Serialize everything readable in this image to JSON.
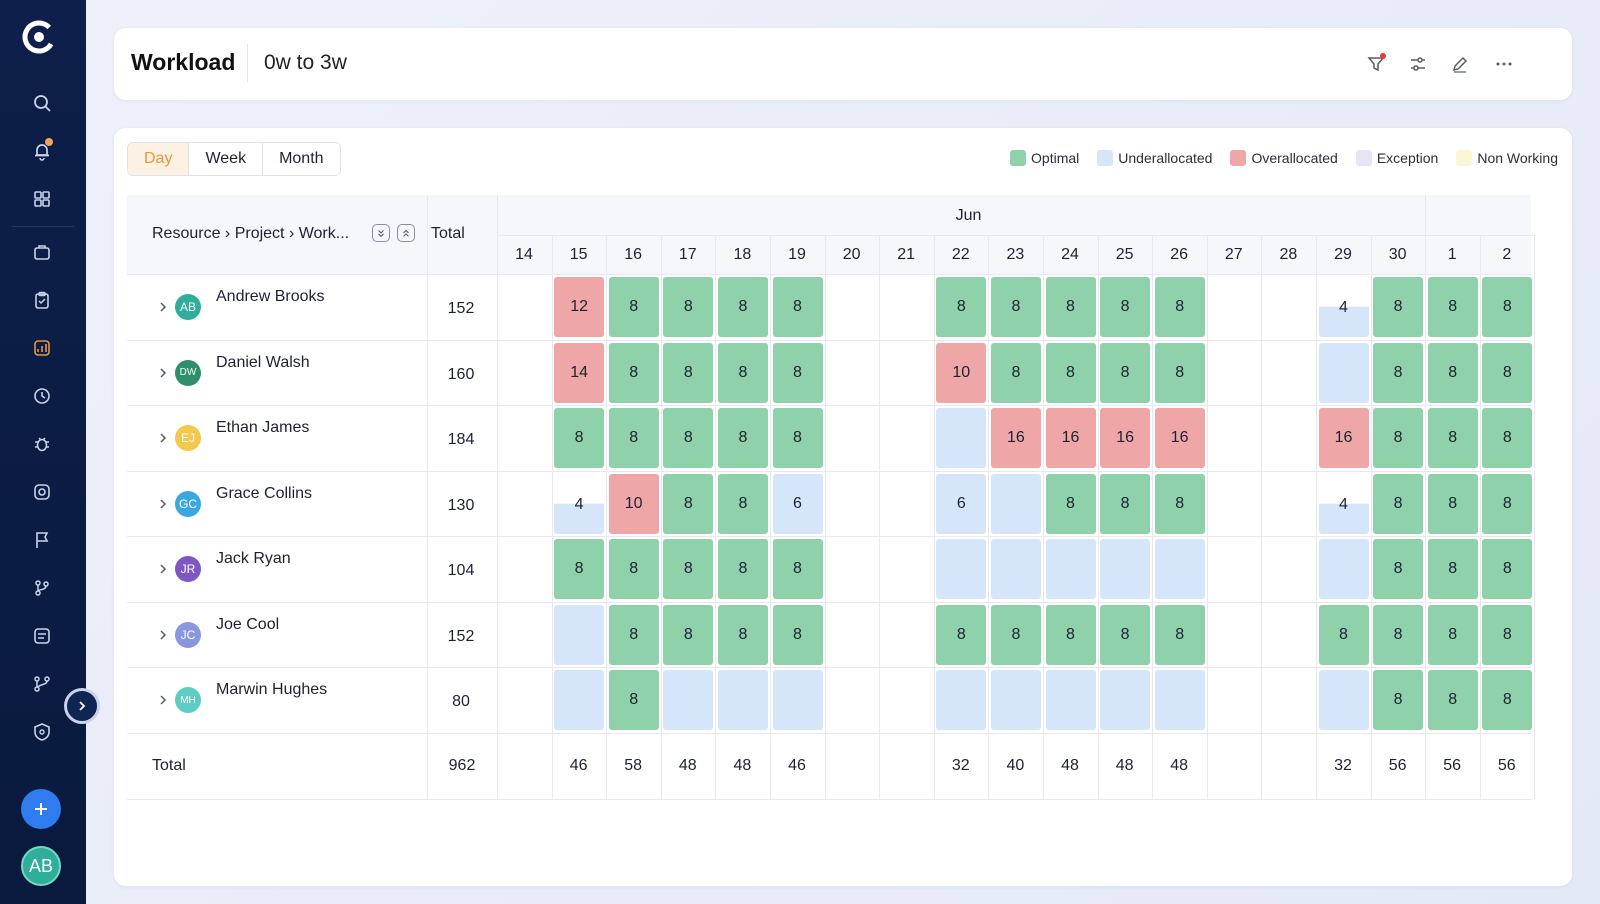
{
  "header": {
    "title": "Workload",
    "subtitle": "0w to 3w"
  },
  "view_toggle": {
    "options": [
      "Day",
      "Week",
      "Month"
    ],
    "active": "Day"
  },
  "legend": [
    {
      "label": "Optimal",
      "color": "#8fd1aa"
    },
    {
      "label": "Underallocated",
      "color": "#d5e6fa"
    },
    {
      "label": "Overallocated",
      "color": "#eea6a6"
    },
    {
      "label": "Exception",
      "color": "#e4e6f6"
    },
    {
      "label": "Non Working",
      "color": "#fdf6d6"
    }
  ],
  "table": {
    "resource_header": "Resource › Project › Work...",
    "total_header": "Total",
    "month": "Jun",
    "days": [
      "14",
      "15",
      "16",
      "17",
      "18",
      "19",
      "20",
      "21",
      "22",
      "23",
      "24",
      "25",
      "26",
      "27",
      "28",
      "29",
      "30",
      "1",
      "2"
    ],
    "rows": [
      {
        "name": "Andrew Brooks",
        "initials": "AB",
        "color": "#2fae9b",
        "total": "152",
        "cells": [
          null,
          [
            "over",
            "12"
          ],
          [
            "opt",
            "8"
          ],
          [
            "opt",
            "8"
          ],
          [
            "opt",
            "8"
          ],
          [
            "opt",
            "8"
          ],
          null,
          null,
          [
            "opt",
            "8"
          ],
          [
            "opt",
            "8"
          ],
          [
            "opt",
            "8"
          ],
          [
            "opt",
            "8"
          ],
          [
            "opt",
            "8"
          ],
          null,
          null,
          [
            "partial",
            "4"
          ],
          [
            "opt",
            "8"
          ],
          [
            "opt",
            "8"
          ],
          [
            "opt",
            "8"
          ]
        ]
      },
      {
        "name": "Daniel Walsh",
        "initials": "DW",
        "color": "#2e8f6a",
        "total": "160",
        "cells": [
          null,
          [
            "over",
            "14"
          ],
          [
            "opt",
            "8"
          ],
          [
            "opt",
            "8"
          ],
          [
            "opt",
            "8"
          ],
          [
            "opt",
            "8"
          ],
          null,
          null,
          [
            "over",
            "10"
          ],
          [
            "opt",
            "8"
          ],
          [
            "opt",
            "8"
          ],
          [
            "opt",
            "8"
          ],
          [
            "opt",
            "8"
          ],
          null,
          null,
          [
            "under",
            ""
          ],
          [
            "opt",
            "8"
          ],
          [
            "opt",
            "8"
          ],
          [
            "opt",
            "8"
          ]
        ]
      },
      {
        "name": "Ethan James",
        "initials": "EJ",
        "color": "#f2c94c",
        "total": "184",
        "cells": [
          null,
          [
            "opt",
            "8"
          ],
          [
            "opt",
            "8"
          ],
          [
            "opt",
            "8"
          ],
          [
            "opt",
            "8"
          ],
          [
            "opt",
            "8"
          ],
          null,
          null,
          [
            "under",
            ""
          ],
          [
            "over",
            "16"
          ],
          [
            "over",
            "16"
          ],
          [
            "over",
            "16"
          ],
          [
            "over",
            "16"
          ],
          null,
          null,
          [
            "over",
            "16"
          ],
          [
            "opt",
            "8"
          ],
          [
            "opt",
            "8"
          ],
          [
            "opt",
            "8"
          ]
        ]
      },
      {
        "name": "Grace Collins",
        "initials": "GC",
        "color": "#3aa7df",
        "total": "130",
        "cells": [
          null,
          [
            "partial",
            "4"
          ],
          [
            "over",
            "10"
          ],
          [
            "opt",
            "8"
          ],
          [
            "opt",
            "8"
          ],
          [
            "under",
            "6"
          ],
          null,
          null,
          [
            "under",
            "6"
          ],
          [
            "under",
            ""
          ],
          [
            "opt",
            "8"
          ],
          [
            "opt",
            "8"
          ],
          [
            "opt",
            "8"
          ],
          null,
          null,
          [
            "partial",
            "4"
          ],
          [
            "opt",
            "8"
          ],
          [
            "opt",
            "8"
          ],
          [
            "opt",
            "8"
          ]
        ]
      },
      {
        "name": "Jack Ryan",
        "initials": "JR",
        "color": "#7e57c2",
        "total": "104",
        "cells": [
          null,
          [
            "opt",
            "8"
          ],
          [
            "opt",
            "8"
          ],
          [
            "opt",
            "8"
          ],
          [
            "opt",
            "8"
          ],
          [
            "opt",
            "8"
          ],
          null,
          null,
          [
            "under",
            ""
          ],
          [
            "under",
            ""
          ],
          [
            "under",
            ""
          ],
          [
            "under",
            ""
          ],
          [
            "under",
            ""
          ],
          null,
          null,
          [
            "under",
            ""
          ],
          [
            "opt",
            "8"
          ],
          [
            "opt",
            "8"
          ],
          [
            "opt",
            "8"
          ]
        ]
      },
      {
        "name": "Joe Cool",
        "initials": "JC",
        "color": "#8a97dd",
        "total": "152",
        "cells": [
          null,
          [
            "under",
            ""
          ],
          [
            "opt",
            "8"
          ],
          [
            "opt",
            "8"
          ],
          [
            "opt",
            "8"
          ],
          [
            "opt",
            "8"
          ],
          null,
          null,
          [
            "opt",
            "8"
          ],
          [
            "opt",
            "8"
          ],
          [
            "opt",
            "8"
          ],
          [
            "opt",
            "8"
          ],
          [
            "opt",
            "8"
          ],
          null,
          null,
          [
            "opt",
            "8"
          ],
          [
            "opt",
            "8"
          ],
          [
            "opt",
            "8"
          ],
          [
            "opt",
            "8"
          ]
        ]
      },
      {
        "name": "Marwin Hughes",
        "initials": "MH",
        "color": "#5ccdc2",
        "total": "80",
        "cells": [
          null,
          [
            "under",
            ""
          ],
          [
            "opt",
            "8"
          ],
          [
            "under",
            ""
          ],
          [
            "under",
            ""
          ],
          [
            "under",
            ""
          ],
          null,
          null,
          [
            "under",
            ""
          ],
          [
            "under",
            ""
          ],
          [
            "under",
            ""
          ],
          [
            "under",
            ""
          ],
          [
            "under",
            ""
          ],
          null,
          null,
          [
            "under",
            ""
          ],
          [
            "opt",
            "8"
          ],
          [
            "opt",
            "8"
          ],
          [
            "opt",
            "8"
          ]
        ]
      }
    ],
    "totals": {
      "label": "Total",
      "grand": "962",
      "days": [
        "",
        "46",
        "58",
        "48",
        "48",
        "46",
        "",
        "",
        "32",
        "40",
        "48",
        "48",
        "48",
        "",
        "",
        "32",
        "56",
        "56",
        "56"
      ]
    }
  },
  "sidebar": {
    "icons": [
      "search-icon",
      "bell-icon",
      "grid-icon",
      "briefcase-icon",
      "clipboard-icon",
      "chart-icon",
      "clock-icon",
      "bug-icon",
      "camera-icon",
      "flag-icon",
      "branch-icon",
      "list-icon",
      "merge-icon",
      "shield-icon"
    ],
    "avatar_initials": "AB"
  }
}
